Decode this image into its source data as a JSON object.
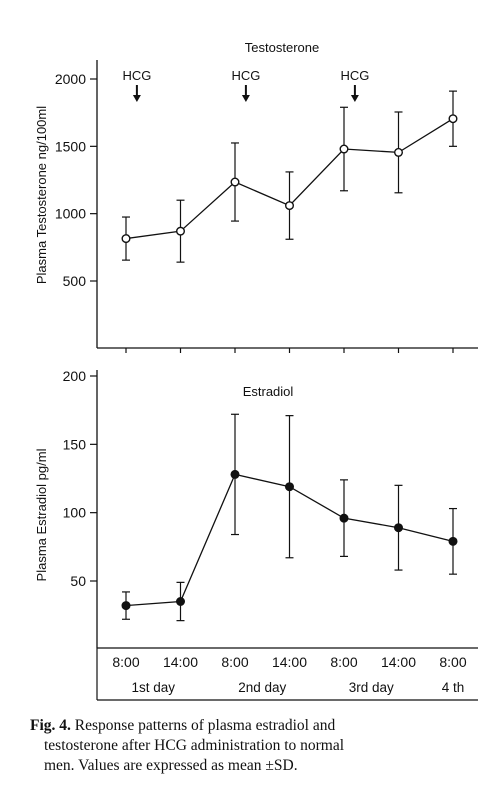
{
  "chart_data": [
    {
      "type": "line",
      "title": "Testosterone",
      "ylabel": "Plasma Testosterone ng/100ml",
      "ylim": [
        0,
        2100
      ],
      "yticks": [
        500,
        1000,
        1500,
        2000
      ],
      "x": [
        "8:00",
        "14:00",
        "8:00",
        "14:00",
        "8:00",
        "14:00",
        "8:00"
      ],
      "series": [
        {
          "marker": "open-circle",
          "values": [
            815,
            870,
            1235,
            1060,
            1480,
            1455,
            1705
          ],
          "sd": [
            160,
            230,
            290,
            250,
            310,
            300,
            205
          ]
        }
      ],
      "annotations": [
        "HCG",
        "HCG",
        "HCG"
      ],
      "annotation_x": [
        0.2,
        2.2,
        4.2
      ],
      "grid": false
    },
    {
      "type": "line",
      "title": "Estradiol",
      "ylabel": "Plasma Estradiol pg/ml",
      "ylim": [
        0,
        205
      ],
      "yticks": [
        50,
        100,
        150,
        200
      ],
      "x": [
        "8:00",
        "14:00",
        "8:00",
        "14:00",
        "8:00",
        "14:00",
        "8:00"
      ],
      "series": [
        {
          "marker": "filled-circle",
          "values": [
            32,
            35,
            128,
            119,
            96,
            89,
            79
          ],
          "sd": [
            10,
            14,
            44,
            52,
            28,
            31,
            24
          ]
        }
      ],
      "grid": false
    }
  ],
  "x_axis": {
    "times": [
      "8:00",
      "14:00",
      "8:00",
      "14:00",
      "8:00",
      "14:00",
      "8:00"
    ],
    "days": [
      "1st day",
      "2nd day",
      "3rd day",
      "4 th"
    ],
    "day_positions": [
      0.5,
      2.5,
      4.5,
      6.0
    ]
  },
  "caption": {
    "line1_bold": "Fig. 4.",
    "line1_rest": "  Response patterns of plasma estradiol and",
    "line2": "testosterone after HCG administration to normal",
    "line3": "men.  Values are expressed as mean ±SD."
  }
}
